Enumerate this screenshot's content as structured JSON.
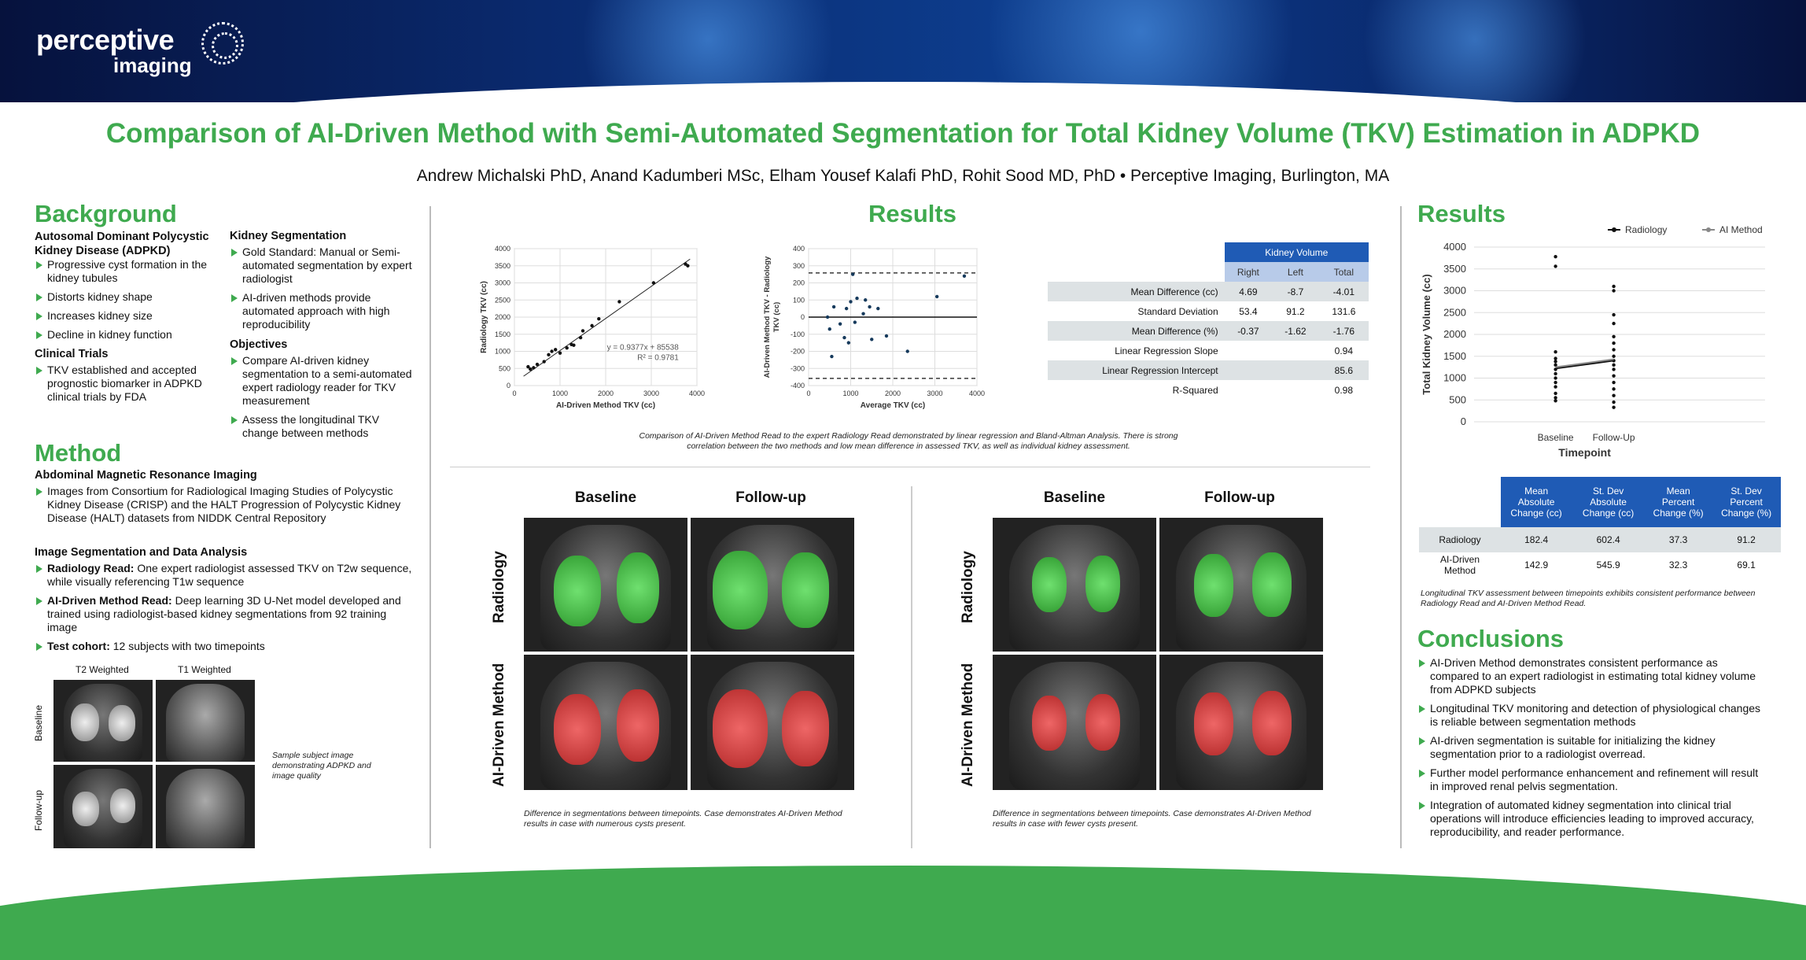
{
  "logo": {
    "line1": "perceptive",
    "line2": "imaging"
  },
  "title": "Comparison of AI-Driven Method with Semi-Automated Segmentation for Total Kidney Volume (TKV) Estimation in ADPKD",
  "authors": "Andrew Michalski PhD, Anand Kadumberi MSc, Elham Yousef Kalafi PhD, Rohit Sood MD, PhD • Perceptive Imaging, Burlington, MA",
  "background": {
    "heading": "Background",
    "adpkd_title": "Autosomal Dominant Polycystic Kidney Disease (ADPKD)",
    "adpkd_items": [
      "Progressive cyst formation in the kidney tubules",
      "Distorts kidney shape",
      "Increases kidney size",
      "Decline in kidney function"
    ],
    "trials_title": "Clinical Trials",
    "trials_items": [
      "TKV established and accepted prognostic biomarker in ADPKD clinical trials by FDA"
    ],
    "seg_title": "Kidney Segmentation",
    "seg_items": [
      "Gold Standard: Manual or Semi-automated segmentation by expert radiologist",
      "AI-driven methods provide automated approach with high reproducibility"
    ],
    "obj_title": "Objectives",
    "obj_items": [
      "Compare AI-driven kidney segmentation to a semi-automated expert radiology reader for TKV measurement",
      "Assess the longitudinal TKV change between methods"
    ]
  },
  "method": {
    "heading": "Method",
    "mri_title": "Abdominal Magnetic Resonance Imaging",
    "mri_items": [
      "Images from Consortium for Radiological Imaging Studies of Polycystic Kidney Disease (CRISP) and the HALT Progression of Polycystic Kidney Disease (HALT) datasets from NIDDK Central Repository"
    ],
    "seg_title": "Image Segmentation and Data Analysis",
    "radiology_bold": "Radiology Read:",
    "radiology_text": " One expert radiologist assessed TKV on T2w sequence, while visually referencing T1w sequence",
    "ai_bold": "AI-Driven Method Read:",
    "ai_text": " Deep learning 3D U-Net model developed and trained using radiologist-based kidney segmentations from 92 training image",
    "cohort_bold": "Test cohort:",
    "cohort_text": " 12 subjects with two timepoints",
    "img_col1": "T2 Weighted",
    "img_col2": "T1 Weighted",
    "img_row1": "Baseline",
    "img_row2": "Follow-up",
    "img_caption": "Sample subject image demonstrating ADPKD and image quality"
  },
  "results_center": {
    "heading": "Results",
    "caption": "Comparison of AI-Driven Method Read to the expert Radiology Read demonstrated by linear regression and Bland-Altman Analysis. There is strong correlation between the two methods and low mean difference in assessed TKV, as well as individual kidney assessment.",
    "col_baseline": "Baseline",
    "col_followup": "Follow-up",
    "row_radiology": "Radiology",
    "row_ai": "AI-Driven Method",
    "caption_left": "Difference in segmentations between timepoints. Case demonstrates AI-Driven Method results in case with numerous cysts present.",
    "caption_right": "Difference in segmentations between timepoints. Case demonstrates AI-Driven Method results in case with fewer cysts present."
  },
  "kv_table": {
    "title": "Kidney Volume",
    "cols": [
      "Right",
      "Left",
      "Total"
    ],
    "rows": [
      {
        "label": "Mean Difference (cc)",
        "v": [
          "4.69",
          "-8.7",
          "-4.01"
        ]
      },
      {
        "label": "Standard Deviation",
        "v": [
          "53.4",
          "91.2",
          "131.6"
        ]
      },
      {
        "label": "Mean Difference (%)",
        "v": [
          "-0.37",
          "-1.62",
          "-1.76"
        ]
      },
      {
        "label": "Linear Regression Slope",
        "v": [
          "",
          "",
          "0.94"
        ]
      },
      {
        "label": "Linear Regression Intercept",
        "v": [
          "",
          "",
          "85.6"
        ]
      },
      {
        "label": "R-Squared",
        "v": [
          "",
          "",
          "0.98"
        ]
      }
    ]
  },
  "long_table": {
    "cols": [
      "Mean Absolute Change (cc)",
      "St. Dev Absolute Change (cc)",
      "Mean Percent Change (%)",
      "St. Dev Percent Change (%)"
    ],
    "rows": [
      {
        "label": "Radiology",
        "v": [
          "182.4",
          "602.4",
          "37.3",
          "91.2"
        ]
      },
      {
        "label": "AI-Driven Method",
        "v": [
          "142.9",
          "545.9",
          "32.3",
          "69.1"
        ]
      }
    ],
    "caption": "Longitudinal TKV assessment between timepoints exhibits consistent performance between Radiology Read and AI-Driven Method Read."
  },
  "results_right": {
    "heading": "Results"
  },
  "conclusions": {
    "heading": "Conclusions",
    "items": [
      "AI-Driven Method demonstrates consistent performance as compared to an expert radiologist in estimating total kidney volume from ADPKD subjects",
      "Longitudinal TKV monitoring and detection of physiological changes is reliable between segmentation methods",
      "AI-driven segmentation is suitable for initializing the kidney segmentation prior to a radiologist overread.",
      "Further model performance enhancement and refinement will result in improved renal pelvis segmentation.",
      "Integration of automated kidney segmentation into clinical trial operations will introduce efficiencies leading to improved accuracy, reproducibility, and reader performance."
    ]
  },
  "chart_data": [
    {
      "type": "scatter",
      "xlabel": "AI-Driven Method TKV (cc)",
      "ylabel": "Radiology TKV (cc)",
      "xlim": [
        0,
        4000
      ],
      "ylim": [
        0,
        4000
      ],
      "xticks": [
        "0",
        "1000",
        "2000",
        "3000",
        "4000"
      ],
      "yticks": [
        "0",
        "500",
        "1000",
        "1500",
        "2000",
        "2500",
        "3000",
        "3500",
        "4000"
      ],
      "equation": "y = 0.9377x + 85538",
      "r2": "R² = 0.9781",
      "trend": {
        "slope": 0.9377,
        "intercept": 85.5
      },
      "points": [
        [
          300,
          550
        ],
        [
          350,
          480
        ],
        [
          420,
          520
        ],
        [
          500,
          620
        ],
        [
          650,
          700
        ],
        [
          750,
          900
        ],
        [
          820,
          1000
        ],
        [
          900,
          1050
        ],
        [
          1000,
          950
        ],
        [
          1150,
          1100
        ],
        [
          1250,
          1200
        ],
        [
          1300,
          1180
        ],
        [
          1450,
          1400
        ],
        [
          1500,
          1600
        ],
        [
          1700,
          1750
        ],
        [
          1850,
          1950
        ],
        [
          2300,
          2450
        ],
        [
          3050,
          3000
        ],
        [
          3750,
          3550
        ],
        [
          3800,
          3500
        ]
      ]
    },
    {
      "type": "scatter",
      "xlabel": "Average TKV (cc)",
      "ylabel": "AI-Driven Method TKV - Radiology TKV (cc)",
      "xlim": [
        0,
        4000
      ],
      "ylim": [
        -400,
        400
      ],
      "xticks": [
        "0",
        "1000",
        "2000",
        "3000",
        "4000"
      ],
      "yticks": [
        "400",
        "300",
        "200",
        "100",
        "0",
        "-100",
        "-200",
        "-300",
        "-400"
      ],
      "mean": 0,
      "limits": [
        258,
        -358
      ],
      "points": [
        [
          450,
          0
        ],
        [
          500,
          -70
        ],
        [
          550,
          -230
        ],
        [
          600,
          60
        ],
        [
          750,
          -40
        ],
        [
          850,
          -120
        ],
        [
          900,
          50
        ],
        [
          950,
          -150
        ],
        [
          1000,
          90
        ],
        [
          1050,
          250
        ],
        [
          1100,
          -30
        ],
        [
          1150,
          110
        ],
        [
          1300,
          20
        ],
        [
          1350,
          100
        ],
        [
          1450,
          60
        ],
        [
          1500,
          -130
        ],
        [
          1650,
          50
        ],
        [
          1850,
          -110
        ],
        [
          2350,
          -200
        ],
        [
          3050,
          120
        ],
        [
          3700,
          240
        ]
      ]
    },
    {
      "type": "line",
      "xlabel": "Timepoint",
      "ylabel": "Total Kidney Volume (cc)",
      "categories": [
        "Baseline",
        "Follow-Up"
      ],
      "ylim": [
        0,
        4000
      ],
      "yticks": [
        "0",
        "500",
        "1000",
        "1500",
        "2000",
        "2500",
        "3000",
        "3500",
        "4000"
      ],
      "legend_position": "top-right",
      "series": [
        {
          "name": "Radiology",
          "values": [
            1220,
            1400
          ]
        },
        {
          "name": "AI Method",
          "values": [
            1250,
            1430
          ]
        }
      ],
      "points_baseline": [
        3780,
        3560,
        1600,
        1450,
        1380,
        1300,
        1200,
        1100,
        1000,
        900,
        800,
        650,
        550,
        480
      ],
      "points_followup": [
        3100,
        3000,
        2450,
        2250,
        1950,
        1800,
        1650,
        1500,
        1400,
        1300,
        1200,
        1050,
        900,
        750,
        600,
        450,
        330
      ]
    }
  ]
}
